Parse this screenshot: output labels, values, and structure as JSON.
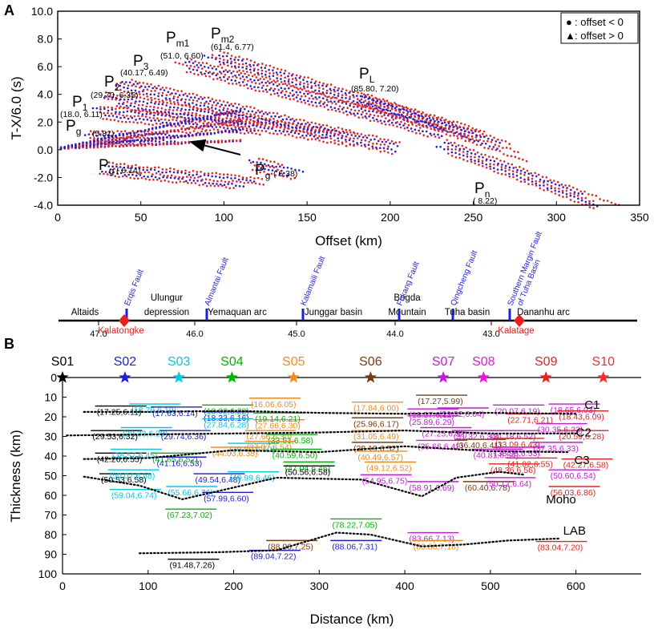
{
  "colors": {
    "blue": "#1f1fd6",
    "red": "#e8211f",
    "layer_palette": [
      "#000000",
      "#1f1fd6",
      "#00c8e6",
      "#00b400",
      "#f28a1e",
      "#7a3b10",
      "#c41ad9",
      "#e619d6",
      "#e8211f",
      "#ff2a2a"
    ]
  },
  "chart_data": [
    {
      "type": "scatter",
      "panel_label": "A",
      "xlabel": "Offset (km)",
      "ylabel": "T-X/6.0 (s)",
      "xlim": [
        0,
        350
      ],
      "ylim": [
        -4.0,
        10.0
      ],
      "xticks": [
        0,
        50,
        100,
        150,
        200,
        250,
        300,
        350
      ],
      "yticks": [
        "10.0",
        "8.0",
        "6.0",
        "4.0",
        "2.0",
        "0.0",
        "-2.0",
        "-4.0"
      ],
      "legend": [
        {
          "marker": "●",
          "label": ": offset < 0",
          "color": "#1f1fd6"
        },
        {
          "marker": "▲",
          "label": ": offset > 0",
          "color": "#e8211f"
        }
      ],
      "phases": [
        {
          "main": "P",
          "sub": "g",
          "value": "(5.81)",
          "x": 18,
          "y": 0.85,
          "slope": 0.0,
          "x1": 95
        },
        {
          "main": "P",
          "sub": "g",
          "value": "( 6.14)",
          "x": 30,
          "y": -1.4,
          "slope": -0.012,
          "x1": 130
        },
        {
          "main": "P",
          "sub": "g",
          "value": "( 6.38)",
          "x": 120,
          "y": -1.1,
          "slope": -0.025,
          "x1": 160
        },
        {
          "main": "P",
          "sub": "1",
          "value": "(18.0, 6.11)",
          "x": 25,
          "y": 2.7,
          "slope": -0.012,
          "x1": 140
        },
        {
          "main": "P",
          "sub": "2",
          "value": "(29.70, 6.35)",
          "x": 33,
          "y": 3.6,
          "slope": -0.02,
          "x1": 180
        },
        {
          "main": "P",
          "sub": "3",
          "value": "(40.17, 6.49)",
          "x": 40,
          "y": 4.7,
          "slope": -0.028,
          "x1": 210
        },
        {
          "main": "P",
          "sub": "m1",
          "value": "(51.0, 6.60)",
          "x": 75,
          "y": 6.2,
          "slope": -0.032,
          "x1": 240
        },
        {
          "main": "P",
          "sub": "m2",
          "value": "(61.4, 6.77)",
          "x": 93,
          "y": 6.8,
          "slope": -0.036,
          "x1": 270
        },
        {
          "main": "P",
          "sub": "L",
          "value": "(85.80, 7.20)",
          "x": 185,
          "y": 3.6,
          "slope": -0.041,
          "x1": 285
        },
        {
          "main": "P",
          "sub": "n",
          "value": "( 8.22)",
          "x": 230,
          "y": 0.4,
          "slope": -0.045,
          "x1": 340
        }
      ]
    },
    {
      "type": "line",
      "panel_label": "B",
      "xlabel": "Distance (km)",
      "ylabel": "Thickness (km)",
      "xlim": [
        0,
        650
      ],
      "ylim": [
        100,
        0
      ],
      "xticks": [
        0,
        100,
        200,
        300,
        400,
        500,
        600
      ],
      "yticks": [
        0,
        10,
        20,
        30,
        40,
        50,
        60,
        70,
        80,
        90,
        100
      ],
      "stations": [
        {
          "name": "S01",
          "x": 0,
          "color": "#000000"
        },
        {
          "name": "S02",
          "x": 73,
          "color": "#1f1fd6"
        },
        {
          "name": "S03",
          "x": 136,
          "color": "#00c8e6"
        },
        {
          "name": "S04",
          "x": 198,
          "color": "#00b400"
        },
        {
          "name": "S05",
          "x": 270,
          "color": "#f28a1e"
        },
        {
          "name": "S06",
          "x": 360,
          "color": "#7a3b10"
        },
        {
          "name": "S07",
          "x": 445,
          "color": "#c41ad9"
        },
        {
          "name": "S08",
          "x": 492,
          "color": "#e619d6"
        },
        {
          "name": "S09",
          "x": 565,
          "color": "#e8211f"
        },
        {
          "name": "S10",
          "x": 632,
          "color": "#ff2a2a"
        }
      ],
      "boundaries": [
        {
          "name": "C1",
          "x": [
            25,
            100,
            200,
            300,
            400,
            500,
            600
          ],
          "y": [
            17.5,
            17.5,
            17.0,
            18.0,
            18.5,
            18.0,
            18.5
          ],
          "label_x": 610,
          "label_y": 16
        },
        {
          "name": "C2",
          "x": [
            5,
            100,
            200,
            300,
            400,
            500,
            600
          ],
          "y": [
            29.5,
            29.0,
            28.5,
            28.0,
            27.0,
            28.5,
            28.5
          ],
          "label_x": 600,
          "label_y": 30
        },
        {
          "name": "C3",
          "x": [
            25,
            100,
            200,
            300,
            400,
            500,
            590
          ],
          "y": [
            41.5,
            41.0,
            37.0,
            38.0,
            35.0,
            37.5,
            38.0
          ],
          "label_x": 598,
          "label_y": 44
        },
        {
          "name": "Moho",
          "x": [
            25,
            90,
            140,
            250,
            350,
            420,
            460,
            510,
            540
          ],
          "y": [
            50.5,
            55.0,
            62.0,
            51.0,
            52.0,
            60.5,
            51.0,
            48.0,
            49.5
          ],
          "label_x": 565,
          "label_y": 64
        },
        {
          "name": "LAB",
          "x": [
            90,
            180,
            250,
            320,
            360,
            420,
            470,
            520,
            580
          ],
          "y": [
            89.5,
            89.0,
            88.0,
            79.0,
            80.0,
            86.0,
            85.0,
            83.0,
            82.0
          ],
          "label_x": 585,
          "label_y": 80
        }
      ],
      "layers": [
        {
          "x": 40,
          "y": 19,
          "text": "(17.25,6.11)",
          "c": 0
        },
        {
          "x": 35,
          "y": 31.5,
          "text": "(29.53,6.32)",
          "c": 0
        },
        {
          "x": 40,
          "y": 43,
          "text": "(42.26,6.55)",
          "c": 0
        },
        {
          "x": 45,
          "y": 53.5,
          "text": "(50.53,6.58)",
          "c": 0
        },
        {
          "x": 80,
          "y": 18,
          "text": "(18.76,6.19)",
          "c": 2
        },
        {
          "x": 105,
          "y": 19.5,
          "text": "(17.63,6.14)",
          "c": 1
        },
        {
          "x": 70,
          "y": 30,
          "text": "(29.33,6.28)",
          "c": 2
        },
        {
          "x": 115,
          "y": 31.5,
          "text": "(29.74,6.36)",
          "c": 1
        },
        {
          "x": 58,
          "y": 41,
          "text": "(38.57,6.45)",
          "c": 2
        },
        {
          "x": 105,
          "y": 43,
          "text": "(41.65,6.52)",
          "c": 3
        },
        {
          "x": 110,
          "y": 45,
          "text": "(41.16,6.53)",
          "c": 1
        },
        {
          "x": 55,
          "y": 51.5,
          "text": "(50.07,6.58)",
          "c": 2
        },
        {
          "x": 155,
          "y": 53.5,
          "text": "(49.54,6.48)",
          "c": 1
        },
        {
          "x": 57,
          "y": 61.5,
          "text": "(59.04,6.74)",
          "c": 2
        },
        {
          "x": 123,
          "y": 60,
          "text": "(55.66,6.76)",
          "c": 2
        },
        {
          "x": 165,
          "y": 63,
          "text": "(57.99,6.60)",
          "c": 1
        },
        {
          "x": 122,
          "y": 71.5,
          "text": "(67.23,7.02)",
          "c": 3
        },
        {
          "x": 165,
          "y": 18.5,
          "text": "(18.02,6.22)",
          "c": 3
        },
        {
          "x": 165,
          "y": 22,
          "text": "(18.33,6.16)",
          "c": 1
        },
        {
          "x": 165,
          "y": 25.5,
          "text": "(27.84,6.28)",
          "c": 2
        },
        {
          "x": 195,
          "y": 38,
          "text": "(39.80,6.50)",
          "c": 2
        },
        {
          "x": 175,
          "y": 40,
          "text": "(44.03,6.38)",
          "c": 4
        },
        {
          "x": 195,
          "y": 52.5,
          "text": "(49.99,6.46)",
          "c": 2
        },
        {
          "x": 215,
          "y": 31.5,
          "text": "(27.66,6.30)",
          "c": 4
        },
        {
          "x": 220,
          "y": 15,
          "text": "(16.06,6.05)",
          "c": 4
        },
        {
          "x": 225,
          "y": 26,
          "text": "(27.66,6.30)",
          "c": 4
        },
        {
          "x": 225,
          "y": 22.5,
          "text": "(19.14,6.21)",
          "c": 3
        },
        {
          "x": 240,
          "y": 33.5,
          "text": "(33.51,6.58)",
          "c": 3
        },
        {
          "x": 215,
          "y": 37,
          "text": "(37.07,6.54)",
          "c": 4
        },
        {
          "x": 245,
          "y": 41,
          "text": "(40.59,6.50)",
          "c": 3
        },
        {
          "x": 260,
          "y": 47.5,
          "text": "(47.04,6.46)",
          "c": 3
        },
        {
          "x": 260,
          "y": 49.5,
          "text": "(50.56,6.58)",
          "c": 0
        },
        {
          "x": 340,
          "y": 17,
          "text": "(17.84,6.00)",
          "c": 4
        },
        {
          "x": 340,
          "y": 25,
          "text": "(25.96,6.17)",
          "c": 5
        },
        {
          "x": 340,
          "y": 31.5,
          "text": "(31.05,6.49)",
          "c": 4
        },
        {
          "x": 340,
          "y": 37.5,
          "text": "(38.19,6.52)",
          "c": 5
        },
        {
          "x": 345,
          "y": 42,
          "text": "(40.49,6.57)",
          "c": 4
        },
        {
          "x": 355,
          "y": 47.5,
          "text": "(49.12,6.52)",
          "c": 4
        },
        {
          "x": 350,
          "y": 54,
          "text": "(54.95,6.75)",
          "c": 6
        },
        {
          "x": 415,
          "y": 13.5,
          "text": "(17.27,5.99)",
          "c": 5
        },
        {
          "x": 405,
          "y": 20.5,
          "text": "(18.57,6.12)",
          "c": 6
        },
        {
          "x": 405,
          "y": 24,
          "text": "(25.89,6.29)",
          "c": 6
        },
        {
          "x": 420,
          "y": 30,
          "text": "(27.25,6.32)",
          "c": 6
        },
        {
          "x": 415,
          "y": 36.5,
          "text": "(35.66,6.42)",
          "c": 6
        },
        {
          "x": 460,
          "y": 36,
          "text": "(36.40,6.41)",
          "c": 5
        },
        {
          "x": 405,
          "y": 57.5,
          "text": "(58.91,6.69)",
          "c": 6
        },
        {
          "x": 470,
          "y": 57.5,
          "text": "(60.40,6.78)",
          "c": 5
        },
        {
          "x": 440,
          "y": 20,
          "text": "(21.32,6.04)",
          "c": 6
        },
        {
          "x": 457,
          "y": 31.5,
          "text": "(31.32,6.34)",
          "c": 6
        },
        {
          "x": 480,
          "y": 41,
          "text": "(40.81,6.54)",
          "c": 6
        },
        {
          "x": 505,
          "y": 18.5,
          "text": "(20.07,6.19)",
          "c": 6
        },
        {
          "x": 520,
          "y": 23,
          "text": "(22.71,6.21)",
          "c": 8
        },
        {
          "x": 500,
          "y": 31.5,
          "text": "(31.18,6.52)",
          "c": 6
        },
        {
          "x": 505,
          "y": 35.5,
          "text": "(33.09,6.43)",
          "c": 8
        },
        {
          "x": 505,
          "y": 40,
          "text": "(38.98,6.53)",
          "c": 6
        },
        {
          "x": 520,
          "y": 45.5,
          "text": "(41.02,6.55)",
          "c": 8
        },
        {
          "x": 500,
          "y": 48.5,
          "text": "(48.36,6.56)",
          "c": 8
        },
        {
          "x": 495,
          "y": 55.5,
          "text": "(50.12,6.64)",
          "c": 6
        },
        {
          "x": 570,
          "y": 18,
          "text": "(18.65,6.03)",
          "c": 6
        },
        {
          "x": 580,
          "y": 21.5,
          "text": "(18.43,6.09)",
          "c": 8
        },
        {
          "x": 555,
          "y": 28,
          "text": "(30.35,6.23)",
          "c": 6
        },
        {
          "x": 580,
          "y": 31.5,
          "text": "(20.59,6.28)",
          "c": 8
        },
        {
          "x": 550,
          "y": 37.5,
          "text": "(37.35,6.33)",
          "c": 6
        },
        {
          "x": 585,
          "y": 46,
          "text": "(42.27,6.58)",
          "c": 8
        },
        {
          "x": 570,
          "y": 51.5,
          "text": "(50.60,6.54)",
          "c": 6
        },
        {
          "x": 570,
          "y": 60,
          "text": "(56.03,6.86)",
          "c": 8
        },
        {
          "x": 315,
          "y": 76.5,
          "text": "(78.22,7.05)",
          "c": 3
        },
        {
          "x": 315,
          "y": 87.5,
          "text": "(88.06,7.31)",
          "c": 1
        },
        {
          "x": 405,
          "y": 83.5,
          "text": "(83.66,7.13)",
          "c": 6
        },
        {
          "x": 410,
          "y": 87.5,
          "text": "(83.86,7.16)",
          "c": 4
        },
        {
          "x": 240,
          "y": 87.5,
          "text": "(88.96,7.25)",
          "c": 5
        },
        {
          "x": 220,
          "y": 92.5,
          "text": "(89.04,7.22)",
          "c": 1
        },
        {
          "x": 125,
          "y": 97,
          "text": "(91.48,7.26)",
          "c": 0
        },
        {
          "x": 555,
          "y": 88,
          "text": "(83.04,7.20)",
          "c": 8
        }
      ]
    }
  ],
  "section": {
    "regions": [
      {
        "name": "Altaids",
        "x": 33
      },
      {
        "name": "Ulungur",
        "x": 135
      },
      {
        "name": "depression",
        "x": 135
      },
      {
        "name": "Yemaquan arc",
        "x": 223
      },
      {
        "name": "Junggar basin",
        "x": 343
      },
      {
        "name": "Bogda",
        "x": 435
      },
      {
        "name": "Mountain",
        "x": 435
      },
      {
        "name": "Tuha basin",
        "x": 510
      },
      {
        "name": "Dananhu arc",
        "x": 605
      }
    ],
    "faults": [
      {
        "name": "Erqis Fault",
        "x": 85
      },
      {
        "name": "Almantai Fault",
        "x": 185
      },
      {
        "name": "Kalamaili Fault",
        "x": 305
      },
      {
        "name": "Fukang Fault",
        "x": 425
      },
      {
        "name": "Qingcheng Fault",
        "x": 492
      },
      {
        "name": "Southern Margin Fault",
        "x": 563
      },
      {
        "name": "of Tuha Basin",
        "x": 563
      }
    ],
    "ticks": [
      {
        "label": "47.0",
        "x": 50
      },
      {
        "label": "46.0",
        "x": 170
      },
      {
        "label": "45.0",
        "x": 297
      },
      {
        "label": "44.0",
        "x": 420
      },
      {
        "label": "43.0",
        "x": 540
      }
    ],
    "stations": [
      {
        "name": "Kalatongke",
        "x": 82
      },
      {
        "name": "Kalatage",
        "x": 575
      }
    ]
  }
}
